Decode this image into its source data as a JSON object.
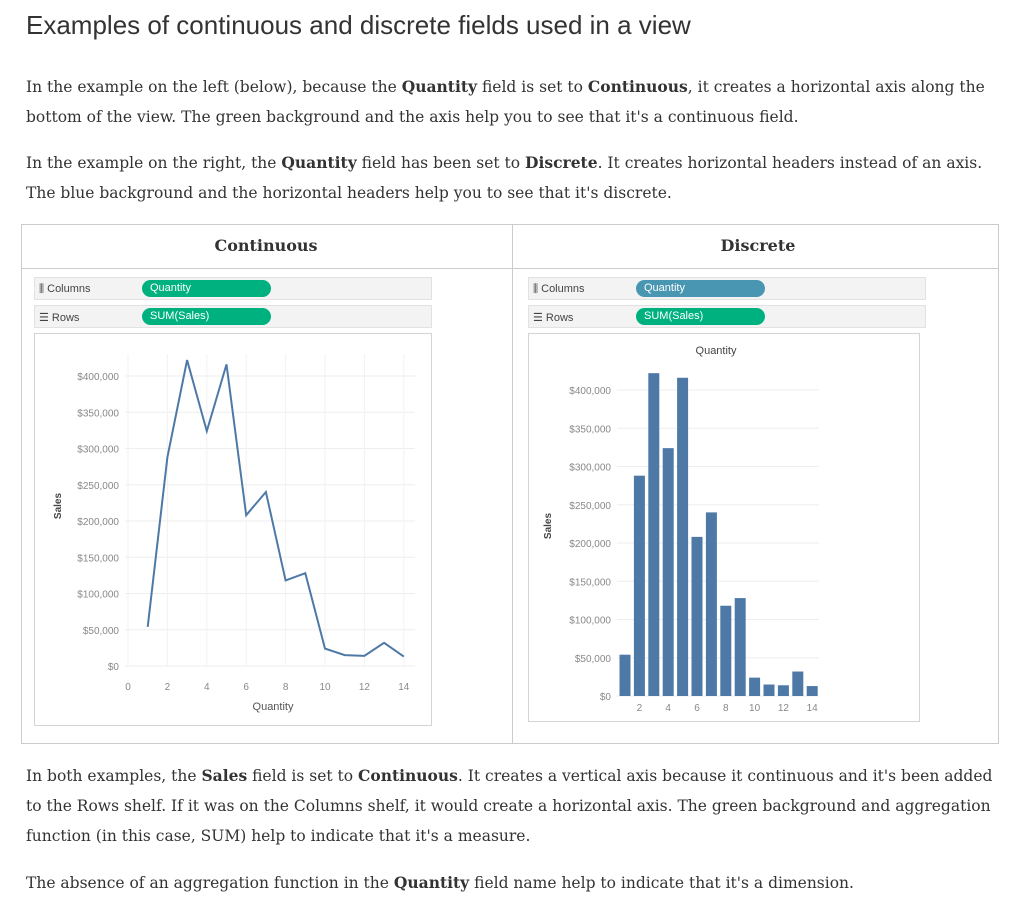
{
  "title": "Examples of continuous and discrete fields used in a view",
  "para1": {
    "t1": "In the example on the left (below), because the ",
    "b1": "Quantity",
    "t2": " field is set to ",
    "b2": "Continuous",
    "t3": ", it creates a horizontal axis along the bottom of the view. The green background and the axis help you to see that it's a continuous field."
  },
  "para2": {
    "t1": "In the example on the right, the ",
    "b1": "Quantity",
    "t2": " field has been set to ",
    "b2": "Discrete",
    "t3": ". It creates horizontal headers instead of an axis. The blue background and the horizontal headers help you to see that it's discrete."
  },
  "para3": {
    "t1": "In both examples, the ",
    "b1": "Sales",
    "t2": " field is set to ",
    "b2": "Continuous",
    "t3": ". It creates a vertical axis because it continuous and it's been added to the Rows shelf. If it was on the Columns shelf, it would create a horizontal axis. The green background and aggregation function (in this case, SUM) help to indicate that it's a measure."
  },
  "para4": {
    "t1": "The absence of an aggregation function in the ",
    "b1": "Quantity",
    "t2": " field name help to indicate that it's a dimension."
  },
  "colors": {
    "green_pill": "#00b180",
    "blue_pill": "#4996b2",
    "mark": "#4e79a7"
  },
  "continuous": {
    "title": "Continuous",
    "columns_label": "Columns",
    "rows_label": "Rows",
    "columns_pill": "Quantity",
    "rows_pill": "SUM(Sales)"
  },
  "discrete": {
    "title": "Discrete",
    "columns_label": "Columns",
    "rows_label": "Rows",
    "columns_pill": "Quantity",
    "rows_pill": "SUM(Sales)"
  },
  "chart_data": [
    {
      "type": "line",
      "xlabel": "Quantity",
      "ylabel": "Sales",
      "x": [
        1,
        2,
        3,
        4,
        5,
        6,
        7,
        8,
        9,
        10,
        11,
        12,
        13,
        14
      ],
      "values": [
        54000,
        288000,
        422000,
        324000,
        416000,
        208000,
        240000,
        118000,
        128000,
        24000,
        15000,
        14000,
        32000,
        13000
      ],
      "xticks": [
        "0",
        "2",
        "4",
        "6",
        "8",
        "10",
        "12",
        "14"
      ],
      "yticks": [
        "$0",
        "$50,000",
        "$100,000",
        "$150,000",
        "$200,000",
        "$250,000",
        "$300,000",
        "$350,000",
        "$400,000"
      ],
      "xlim": [
        0,
        14
      ],
      "ylim": [
        0,
        400000
      ]
    },
    {
      "type": "bar",
      "header": "Quantity",
      "ylabel": "Sales",
      "categories": [
        1,
        2,
        3,
        4,
        5,
        6,
        7,
        8,
        9,
        10,
        11,
        12,
        13,
        14
      ],
      "values": [
        54000,
        288000,
        422000,
        324000,
        416000,
        208000,
        240000,
        118000,
        128000,
        24000,
        15000,
        14000,
        32000,
        13000
      ],
      "xticks": [
        "2",
        "4",
        "6",
        "8",
        "10",
        "12",
        "14"
      ],
      "yticks": [
        "$0",
        "$50,000",
        "$100,000",
        "$150,000",
        "$200,000",
        "$250,000",
        "$300,000",
        "$350,000",
        "$400,000"
      ]
    }
  ]
}
